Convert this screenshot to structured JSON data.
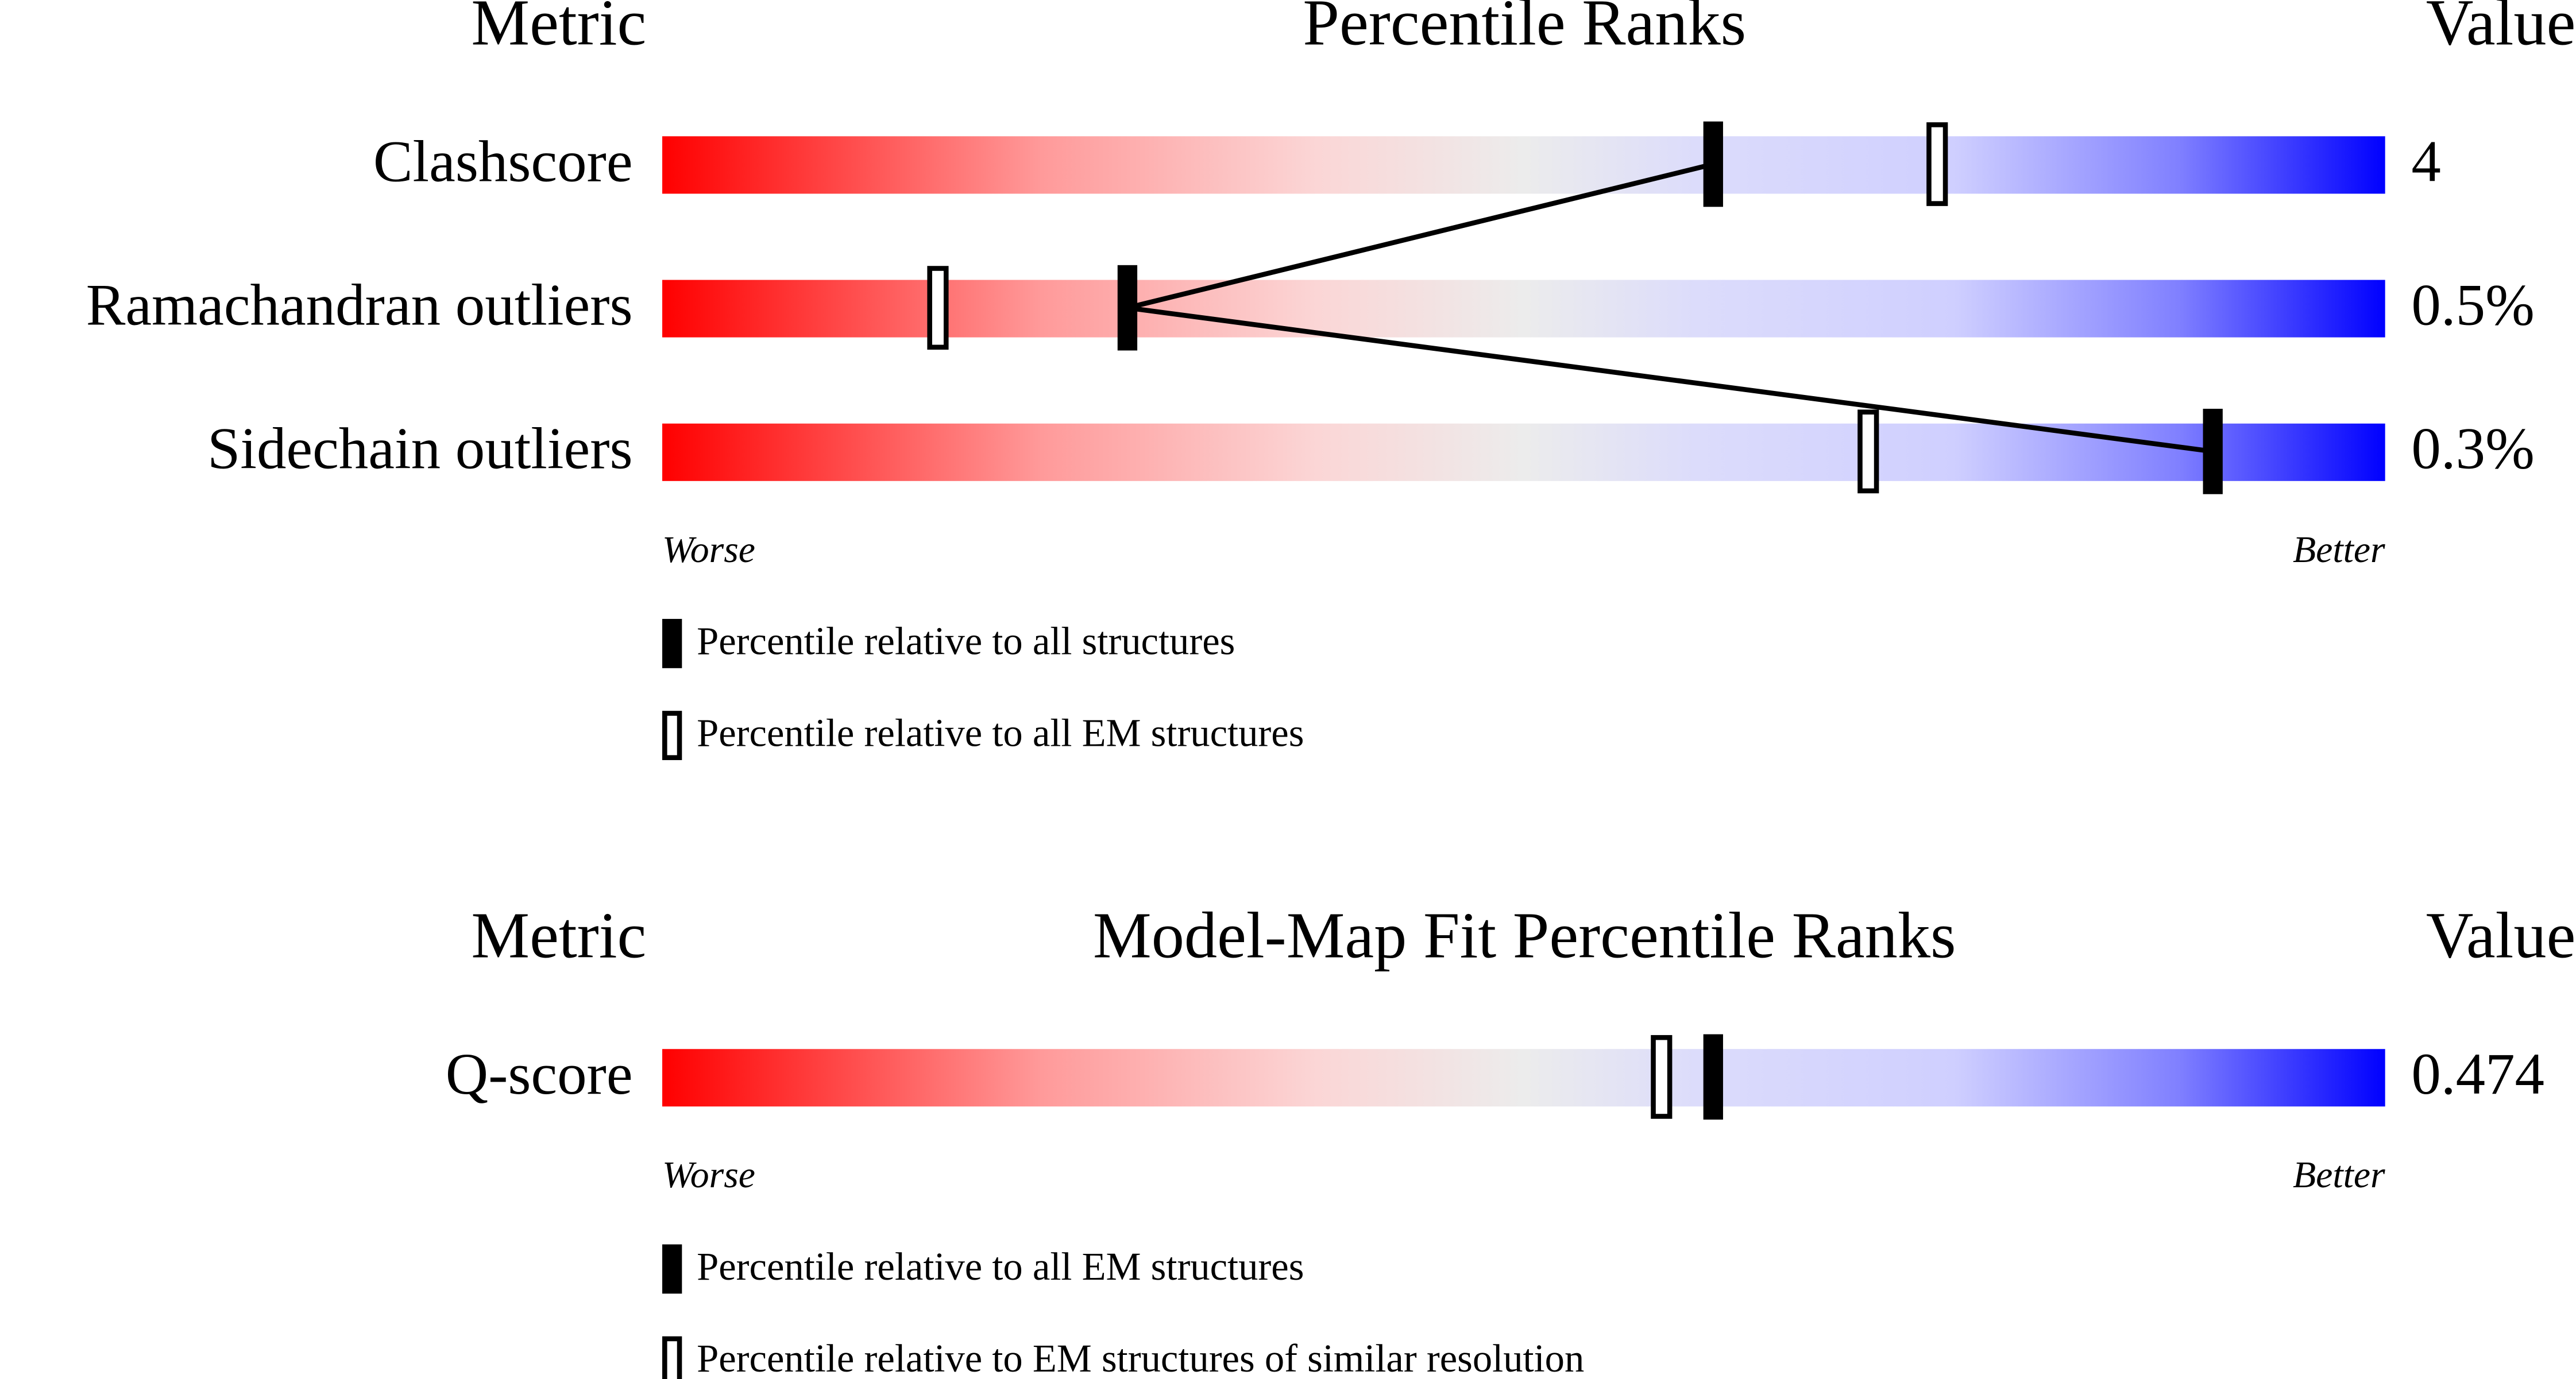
{
  "chart_data": [
    {
      "type": "slider",
      "title": "Percentile Ranks",
      "metric_header": "Metric",
      "value_header": "Value",
      "categories": [
        "Clashscore",
        "Ramachandran outliers",
        "Sidechain outliers"
      ],
      "metric_values": [
        "4",
        "0.5%",
        "0.3%"
      ],
      "series": [
        {
          "name": "Percentile relative to all structures",
          "style": "filled",
          "color": "#000000",
          "values": [
            61,
            27,
            90
          ]
        },
        {
          "name": "Percentile relative to all EM structures",
          "style": "outline",
          "color": "#000000",
          "values": [
            74,
            16,
            70
          ]
        }
      ],
      "connect_first_series": true,
      "xlim": [
        0,
        100
      ],
      "worse_label": "Worse",
      "better_label": "Better"
    },
    {
      "type": "slider",
      "title": "Model-Map Fit Percentile Ranks",
      "metric_header": "Metric",
      "value_header": "Value",
      "categories": [
        "Q-score"
      ],
      "metric_values": [
        "0.474"
      ],
      "series": [
        {
          "name": "Percentile relative to all EM structures",
          "style": "filled",
          "color": "#000000",
          "values": [
            61
          ]
        },
        {
          "name": "Percentile relative to EM structures of similar resolution",
          "style": "outline",
          "color": "#000000",
          "values": [
            58
          ]
        }
      ],
      "connect_first_series": false,
      "xlim": [
        0,
        100
      ],
      "worse_label": "Worse",
      "better_label": "Better"
    }
  ]
}
